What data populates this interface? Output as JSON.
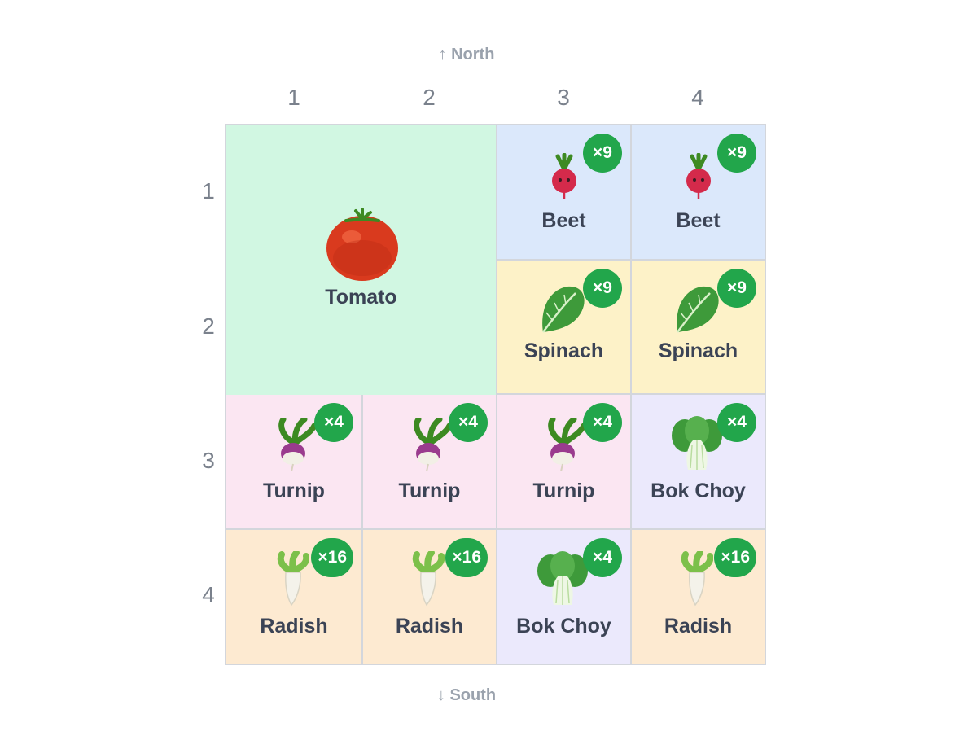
{
  "compass": {
    "north": "↑ North",
    "south": "↓ South"
  },
  "columns": [
    "1",
    "2",
    "3",
    "4"
  ],
  "rows": [
    "1",
    "2",
    "3",
    "4"
  ],
  "colors": {
    "tomato": "#d1f7e2",
    "beet": "#dbe8fb",
    "spinach": "#fdf2c8",
    "turnip": "#fbe6f2",
    "bokchoy": "#ebe9fc",
    "radish": "#fdead1",
    "badge": "#22a64b"
  },
  "plots": [
    {
      "name": "Tomato",
      "badge": "",
      "icon": "tomato-icon"
    },
    {
      "name": "Beet",
      "badge": "×9",
      "icon": "beet-icon"
    },
    {
      "name": "Beet",
      "badge": "×9",
      "icon": "beet-icon"
    },
    {
      "name": "Spinach",
      "badge": "×9",
      "icon": "spinach-icon"
    },
    {
      "name": "Spinach",
      "badge": "×9",
      "icon": "spinach-icon"
    },
    {
      "name": "Turnip",
      "badge": "×4",
      "icon": "turnip-icon"
    },
    {
      "name": "Turnip",
      "badge": "×4",
      "icon": "turnip-icon"
    },
    {
      "name": "Turnip",
      "badge": "×4",
      "icon": "turnip-icon"
    },
    {
      "name": "Bok Choy",
      "badge": "×4",
      "icon": "bok-choy-icon"
    },
    {
      "name": "Radish",
      "badge": "×16",
      "icon": "radish-icon"
    },
    {
      "name": "Radish",
      "badge": "×16",
      "icon": "radish-icon"
    },
    {
      "name": "Bok Choy",
      "badge": "×4",
      "icon": "bok-choy-icon"
    },
    {
      "name": "Radish",
      "badge": "×16",
      "icon": "radish-icon"
    }
  ]
}
